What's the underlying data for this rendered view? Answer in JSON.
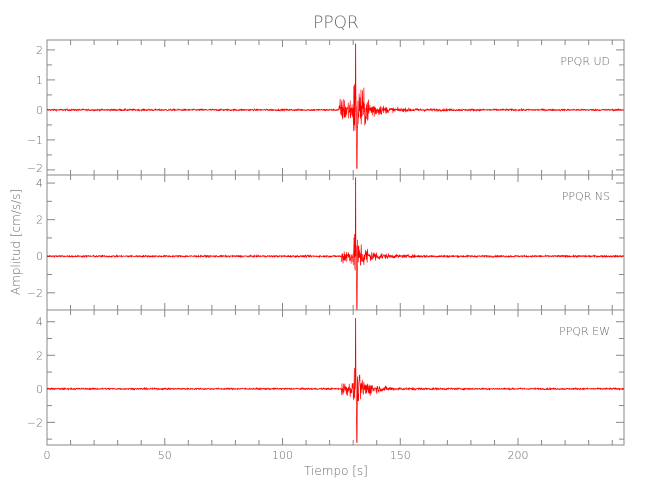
{
  "chart_data": {
    "type": "line",
    "title": "PPQR",
    "xlabel": "Tiempo [s]",
    "ylabel": "Amplitud [cm/s/s]",
    "xlim": [
      0,
      245
    ],
    "x_ticks": [
      0,
      50,
      100,
      150,
      200
    ],
    "grid": false,
    "line_color": "#ff0000",
    "panels": [
      {
        "label_station": "PPQR",
        "label_component": "UD",
        "ylim": [
          -2.17,
          2.33
        ],
        "y_ticks": [
          2,
          1,
          0,
          -1,
          -2
        ],
        "y_tick_labels": [
          "2",
          "1",
          "0",
          "−1",
          "−2"
        ],
        "onset_s": 124,
        "peak_time_s": 131,
        "peak_positive": 2.2,
        "peak_negative": -1.95,
        "noise_level": 0.03
      },
      {
        "label_station": "PPQR",
        "label_component": "NS",
        "ylim": [
          -2.94,
          4.44
        ],
        "y_ticks": [
          4,
          2,
          0,
          -2
        ],
        "y_tick_labels": [
          "4",
          "2",
          "0",
          "−2"
        ],
        "onset_s": 125,
        "peak_time_s": 131,
        "peak_positive": 4.3,
        "peak_negative": -2.9,
        "noise_level": 0.05
      },
      {
        "label_station": "PPQR",
        "label_component": "EW",
        "ylim": [
          -3.35,
          4.7
        ],
        "y_ticks": [
          4,
          2,
          0,
          -2
        ],
        "y_tick_labels": [
          "4",
          "2",
          "0",
          "−2"
        ],
        "onset_s": 125,
        "peak_time_s": 131,
        "peak_positive": 4.2,
        "peak_negative": -3.2,
        "noise_level": 0.05
      }
    ]
  }
}
